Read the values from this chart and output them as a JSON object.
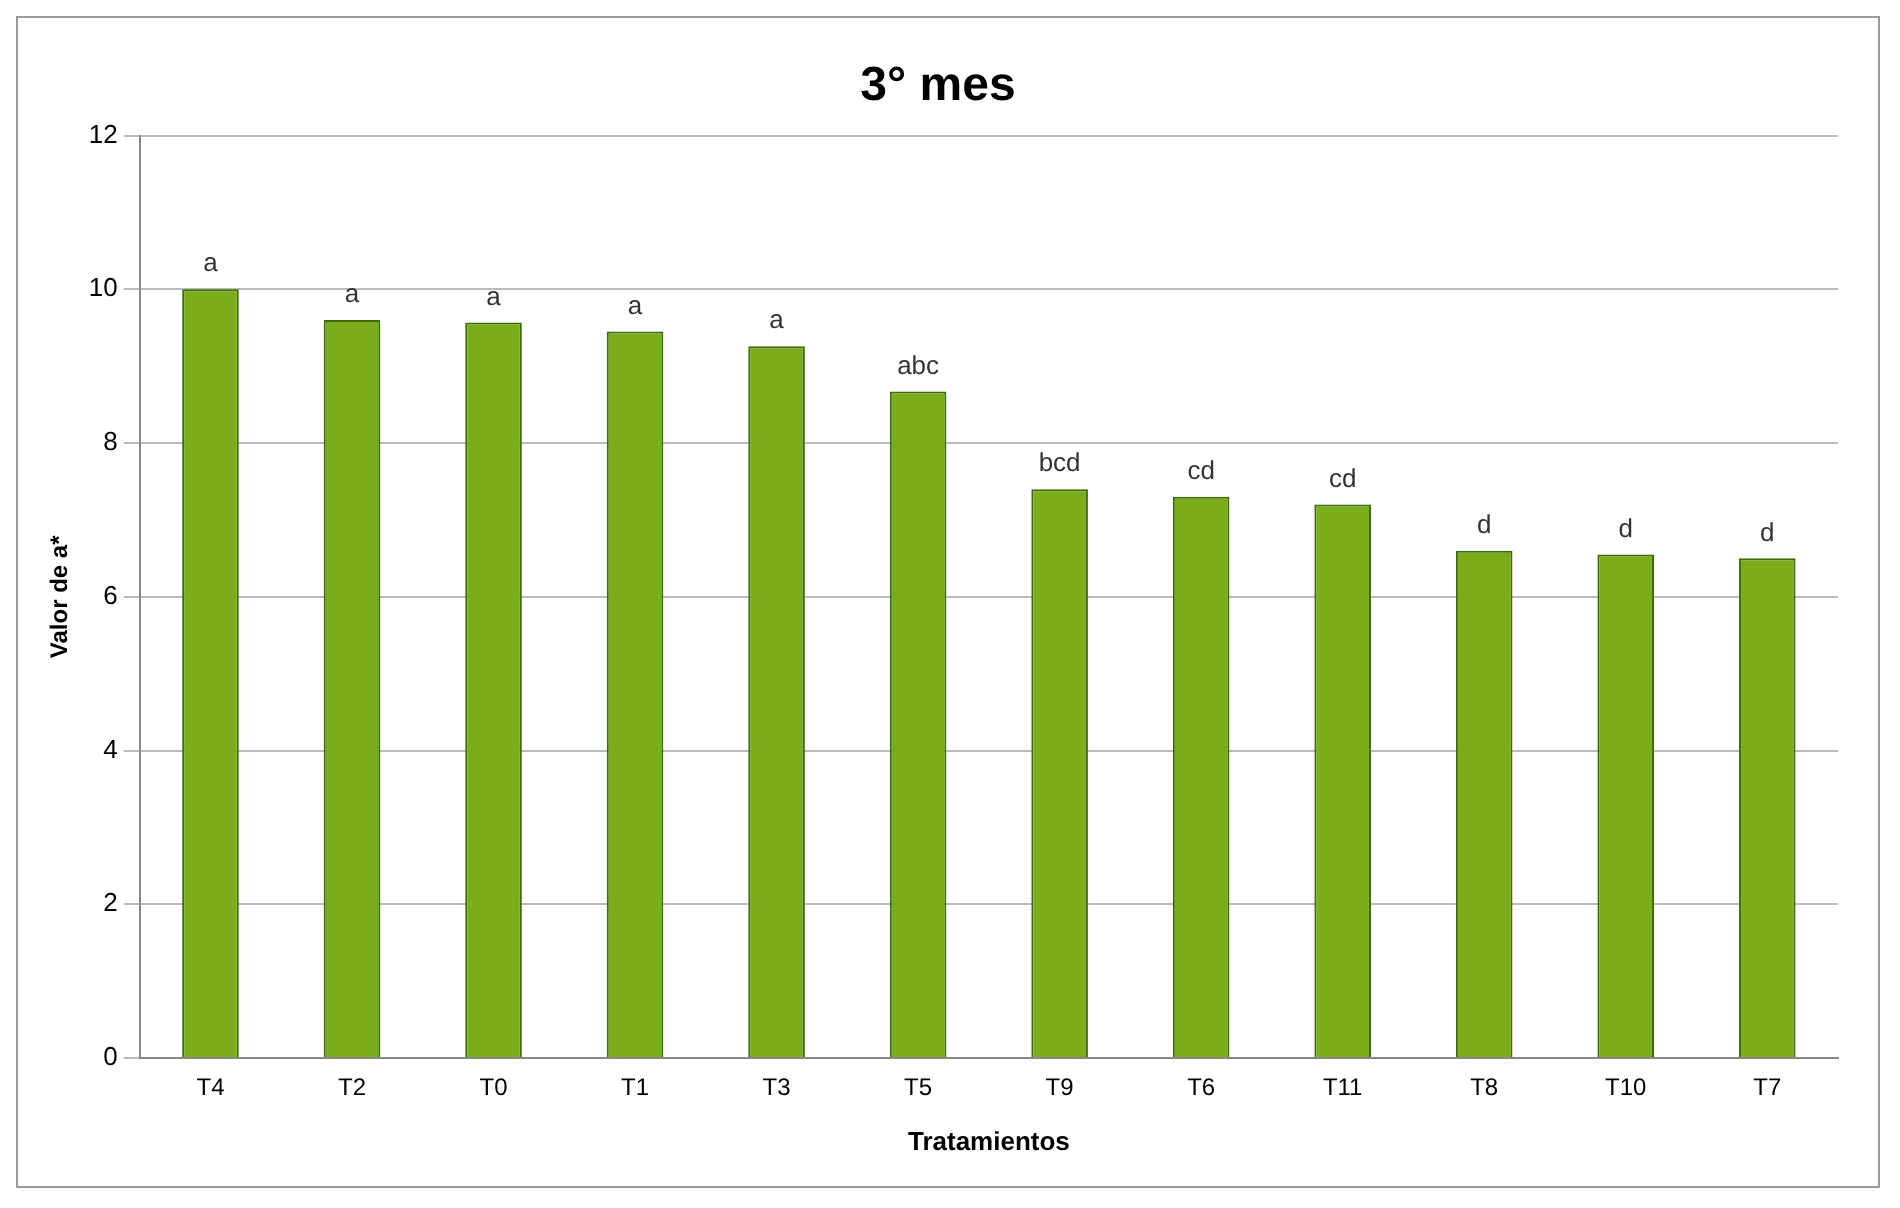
{
  "chart_data": {
    "type": "bar",
    "title": "3° mes",
    "xlabel": "Tratamientos",
    "ylabel": "Valor de a*",
    "categories": [
      "T4",
      "T2",
      "T0",
      "T1",
      "T3",
      "T5",
      "T9",
      "T6",
      "T11",
      "T8",
      "T10",
      "T7"
    ],
    "values": [
      10.0,
      9.6,
      9.57,
      9.45,
      9.26,
      8.67,
      7.4,
      7.3,
      7.2,
      6.6,
      6.55,
      6.5
    ],
    "value_labels": [
      "a",
      "a",
      "a",
      "a",
      "a",
      "abc",
      "bcd",
      "cd",
      "cd",
      "d",
      "d",
      "d"
    ],
    "color": "#7aad1c",
    "ylim": [
      0,
      12
    ],
    "yticks": [
      0,
      2,
      4,
      6,
      8,
      10,
      12
    ],
    "grid": "y"
  }
}
